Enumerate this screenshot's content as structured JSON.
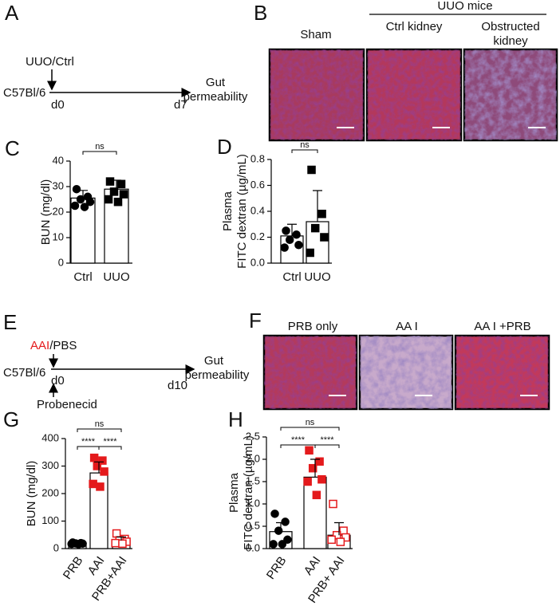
{
  "panels": {
    "A": {
      "letter": "A",
      "treatment": "UUO/Ctrl",
      "strain": "C57Bl/6",
      "start": "d0",
      "end": "d7",
      "readout": [
        "Gut",
        "permeability"
      ]
    },
    "B": {
      "letter": "B",
      "group": "UUO mice",
      "images": [
        [
          "Sham"
        ],
        [
          "Ctrl kidney"
        ],
        [
          "Obstructed",
          "kidney"
        ]
      ]
    },
    "E": {
      "letter": "E",
      "treatment": [
        "AAI",
        "/PBS"
      ],
      "strain": "C57Bl/6",
      "start": "d0",
      "end": "d10",
      "cotreatment": "Probenecid",
      "readout": [
        "Gut",
        "permeability"
      ]
    },
    "F": {
      "letter": "F",
      "images": [
        [
          "PRB only"
        ],
        [
          "AA I"
        ],
        [
          "AA I +PRB"
        ]
      ]
    }
  },
  "chart_data": [
    {
      "type": "bar",
      "letter": "C",
      "ylabel": [
        "BUN (mg/dl)"
      ],
      "categories": [
        "Ctrl",
        "UUO"
      ],
      "values": [
        25.5,
        29
      ],
      "errors": [
        3,
        3.5
      ],
      "points": [
        [
          29,
          26,
          25,
          24,
          22.5,
          22
        ],
        [
          32,
          31,
          28,
          27,
          25,
          24
        ]
      ],
      "markers": [
        {
          "shape": "circle",
          "color": "#000000",
          "filled": true
        },
        {
          "shape": "square",
          "color": "#000000",
          "filled": true
        }
      ],
      "comparisons": [
        {
          "groups": [
            0,
            1
          ],
          "label": "ns"
        }
      ],
      "ylim": [
        0,
        40
      ],
      "yticks": [
        0,
        10,
        20,
        30,
        40
      ]
    },
    {
      "type": "bar",
      "letter": "D",
      "ylabel": [
        "Plasma",
        "FITC dextran (µg/mL)"
      ],
      "categories": [
        "Ctrl",
        "UUO"
      ],
      "values": [
        0.21,
        0.32
      ],
      "errors": [
        0.09,
        0.24
      ],
      "points": [
        [
          0.25,
          0.22,
          0.18,
          0.14,
          0.12
        ],
        [
          0.72,
          0.38,
          0.27,
          0.2,
          0.08
        ]
      ],
      "markers": [
        {
          "shape": "circle",
          "color": "#000000",
          "filled": true
        },
        {
          "shape": "square",
          "color": "#000000",
          "filled": true
        }
      ],
      "comparisons": [
        {
          "groups": [
            0,
            1
          ],
          "label": "ns"
        }
      ],
      "ylim": [
        0,
        0.8
      ],
      "yticks": [
        {
          "value": 0,
          "label": "0.0"
        },
        0.2,
        0.4,
        0.6,
        0.8
      ]
    },
    {
      "type": "bar",
      "letter": "G",
      "ylabel": [
        "BUN (mg/dl)"
      ],
      "categories": [
        "PRB",
        "AAI",
        "PRB+AAI"
      ],
      "values": [
        18,
        275,
        30
      ],
      "errors": [
        4,
        40,
        12
      ],
      "points": [
        [
          22,
          20,
          19,
          18,
          17,
          16
        ],
        [
          330,
          320,
          300,
          280,
          235,
          225
        ],
        [
          55,
          35,
          30,
          25,
          20,
          18
        ]
      ],
      "markers": [
        {
          "shape": "circle",
          "color": "#000000",
          "filled": true
        },
        {
          "shape": "square",
          "color": "#e41a1c",
          "filled": true
        },
        {
          "shape": "square",
          "color": "#e41a1c",
          "filled": false
        }
      ],
      "comparisons": [
        {
          "groups": [
            0,
            2
          ],
          "label": "ns"
        },
        {
          "groups": [
            0,
            1
          ],
          "label": "****"
        },
        {
          "groups": [
            1,
            2
          ],
          "label": "****"
        }
      ],
      "ylim": [
        0,
        400
      ],
      "yticks": [
        0,
        100,
        200,
        300,
        400
      ]
    },
    {
      "type": "bar",
      "letter": "H",
      "ylabel": [
        "Plasma",
        "FITC dextran (µg/mL)"
      ],
      "categories": [
        "PRB",
        "AAI",
        "PRB+ AAI"
      ],
      "values": [
        0.38,
        1.6,
        0.3
      ],
      "errors": [
        0.2,
        0.4,
        0.28
      ],
      "points": [
        [
          0.78,
          0.6,
          0.4,
          0.2,
          0.1,
          0.1
        ],
        [
          2.2,
          1.95,
          1.8,
          1.55,
          1.5,
          1.2
        ],
        [
          1.0,
          0.4,
          0.3,
          0.25,
          0.2,
          0.15
        ]
      ],
      "markers": [
        {
          "shape": "circle",
          "color": "#000000",
          "filled": true
        },
        {
          "shape": "square",
          "color": "#e41a1c",
          "filled": true
        },
        {
          "shape": "square",
          "color": "#e41a1c",
          "filled": false
        }
      ],
      "comparisons": [
        {
          "groups": [
            0,
            2
          ],
          "label": "ns"
        },
        {
          "groups": [
            0,
            1
          ],
          "label": "****"
        },
        {
          "groups": [
            1,
            2
          ],
          "label": "****"
        }
      ],
      "ylim": [
        0,
        2.5
      ],
      "yticks": [
        {
          "value": 0,
          "label": "0.0"
        },
        0.5,
        {
          "value": 1,
          "label": "1.0"
        },
        1.5,
        {
          "value": 2,
          "label": "2.0"
        },
        2.5
      ]
    }
  ]
}
